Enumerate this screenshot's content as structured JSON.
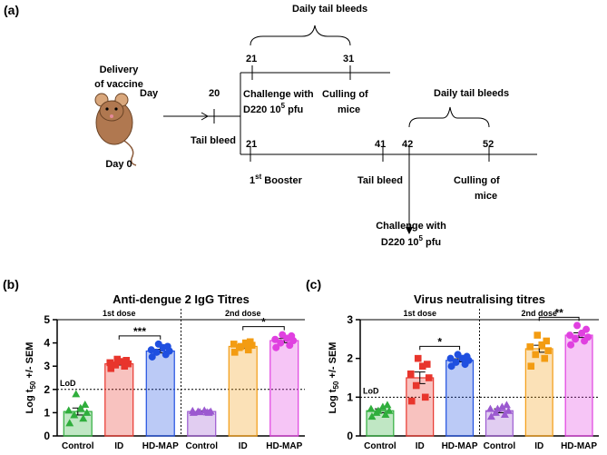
{
  "timeline": {
    "panel": "(a)",
    "delivery": [
      "Delivery",
      "of vaccine"
    ],
    "day": "Day",
    "day0": "Day 0",
    "day20": 20,
    "tail_bleed_1": "Tail bleed",
    "upper_days": [
      21,
      31
    ],
    "upper_bleeds": "Daily tail bleeds",
    "challenge_1": [
      "Challenge with",
      "D220 10",
      "5",
      " pfu"
    ],
    "culling_1": [
      "Culling of",
      "mice"
    ],
    "lower_days": [
      21,
      41,
      42,
      52
    ],
    "booster": [
      "1",
      "st",
      " Booster"
    ],
    "tail_bleed_2": "Tail bleed",
    "lower_bleeds": "Daily tail bleeds",
    "challenge_2": [
      "Challenge with",
      "D220 10",
      "5",
      " pfu"
    ],
    "culling_2": [
      "Culling of",
      "mice"
    ]
  },
  "chart_data": [
    {
      "type": "bar",
      "panel": "(b)",
      "title": "Anti-dengue 2 IgG Titres",
      "ylabel": [
        "Log t",
        "50",
        " +/- SEM"
      ],
      "categories": [
        "Control",
        "ID",
        "HD-MAP",
        "Control",
        "ID",
        "HD-MAP"
      ],
      "values": [
        1.05,
        3.1,
        3.65,
        1.05,
        3.85,
        4.1
      ],
      "errors": [
        0.15,
        0.05,
        0.08,
        0.03,
        0.07,
        0.09
      ],
      "colors": [
        "#2fae3c",
        "#e8352c",
        "#1f4fe0",
        "#9b59d0",
        "#f39c12",
        "#e040e0"
      ],
      "markers": [
        "triangle",
        "square",
        "circle",
        "triangle",
        "square",
        "circle"
      ],
      "points": [
        [
          0.55,
          0.75,
          0.9,
          1.0,
          1.1,
          1.2,
          1.35,
          1.8
        ],
        [
          2.9,
          3.0,
          3.05,
          3.1,
          3.15,
          3.2,
          3.25,
          3.3
        ],
        [
          3.4,
          3.5,
          3.6,
          3.65,
          3.7,
          3.8,
          3.85,
          3.95
        ],
        [
          1.0,
          1.02,
          1.05,
          1.05,
          1.08,
          1.1,
          1.0,
          1.03
        ],
        [
          3.6,
          3.7,
          3.8,
          3.9,
          3.95,
          4.0,
          4.05,
          3.85
        ],
        [
          3.8,
          3.9,
          4.0,
          4.1,
          4.15,
          4.2,
          4.3,
          4.35
        ]
      ],
      "ylim": [
        0,
        5
      ],
      "yticks": [
        0,
        1,
        2,
        3,
        4,
        5
      ],
      "lod": {
        "label": "LoD",
        "value": 2
      },
      "sections": [
        "1st dose",
        "2nd dose"
      ],
      "significance": [
        {
          "label": "***",
          "from": 1,
          "to": 2
        },
        {
          "label": "*",
          "from": 4,
          "to": 5
        }
      ]
    },
    {
      "type": "bar",
      "panel": "(c)",
      "title": "Virus neutralising titres",
      "ylabel": [
        "Log t",
        "50",
        " +/- SEM"
      ],
      "categories": [
        "Control",
        "ID",
        "HD-MAP",
        "Control",
        "ID",
        "HD-MAP"
      ],
      "values": [
        0.65,
        1.5,
        1.95,
        0.65,
        2.25,
        2.6
      ],
      "errors": [
        0.05,
        0.15,
        0.04,
        0.05,
        0.09,
        0.06
      ],
      "colors": [
        "#2fae3c",
        "#e8352c",
        "#1f4fe0",
        "#9b59d0",
        "#f39c12",
        "#e040e0"
      ],
      "markers": [
        "triangle",
        "square",
        "circle",
        "triangle",
        "square",
        "circle"
      ],
      "points": [
        [
          0.5,
          0.55,
          0.6,
          0.65,
          0.7,
          0.75,
          0.8,
          0.65
        ],
        [
          0.9,
          1.0,
          1.3,
          1.5,
          1.6,
          1.8,
          1.85,
          2.0
        ],
        [
          1.8,
          1.85,
          1.9,
          1.95,
          2.0,
          2.0,
          2.05,
          2.1
        ],
        [
          0.5,
          0.55,
          0.6,
          0.65,
          0.7,
          0.75,
          0.8,
          0.7
        ],
        [
          1.8,
          2.0,
          2.1,
          2.2,
          2.3,
          2.35,
          2.45,
          2.6
        ],
        [
          2.35,
          2.45,
          2.5,
          2.55,
          2.6,
          2.65,
          2.75,
          2.85
        ]
      ],
      "ylim": [
        0,
        3
      ],
      "yticks": [
        0,
        1,
        2,
        3
      ],
      "lod": {
        "label": "LoD",
        "value": 1
      },
      "sections": [
        "1st dose",
        "2nd dose"
      ],
      "significance": [
        {
          "label": "*",
          "from": 1,
          "to": 2
        },
        {
          "label": "**",
          "from": 4,
          "to": 5
        }
      ]
    }
  ]
}
